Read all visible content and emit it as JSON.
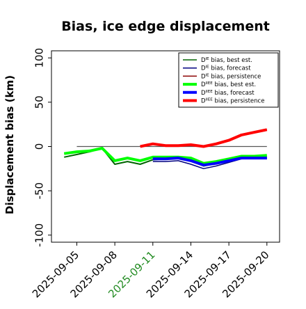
{
  "chart_data": {
    "type": "line",
    "title": "Bias, ice edge displacement",
    "xlabel": "",
    "ylabel": "Displacement bias (km)",
    "ylim": [
      -108,
      108
    ],
    "xlim": [
      "2025-09-03",
      "2025-09-21"
    ],
    "y_ticks": [
      -100,
      -50,
      0,
      50,
      100
    ],
    "y_tick_labels": [
      "-100",
      "-50",
      "0",
      "50",
      "100"
    ],
    "x_ticks": [
      "2025-09-05",
      "2025-09-08",
      "2025-09-11",
      "2025-09-14",
      "2025-09-17",
      "2025-09-20"
    ],
    "x_tick_labels": [
      "2025-09-05",
      "2025-09-08",
      "2025-09-11",
      "2025-09-14",
      "2025-09-17",
      "2025-09-20"
    ],
    "highlight_tick": "2025-09-11",
    "highlight_color": "#228b22",
    "grid": false,
    "legend_position": "top-right",
    "zero_line": {
      "y": 0,
      "from": "2025-09-05",
      "to": "2025-09-20",
      "color": "#555555"
    },
    "series": [
      {
        "name": "D^IE bias, best est.",
        "name_base": "D",
        "name_sup": "IE",
        "name_rest": " bias, best est.",
        "color": "#006400",
        "width": 2,
        "x": [
          "2025-09-04",
          "2025-09-05",
          "2025-09-06",
          "2025-09-07",
          "2025-09-08",
          "2025-09-09",
          "2025-09-10",
          "2025-09-11",
          "2025-09-12",
          "2025-09-13",
          "2025-09-14",
          "2025-09-15",
          "2025-09-16",
          "2025-09-17",
          "2025-09-18",
          "2025-09-19",
          "2025-09-20"
        ],
        "values": [
          -12,
          -9,
          -6,
          -2,
          -20,
          -17,
          -20,
          -15,
          -14,
          -13,
          -16,
          -22,
          -19,
          -16,
          -13,
          -13,
          -12
        ]
      },
      {
        "name": "D^IE bias, forecast",
        "name_base": "D",
        "name_sup": "IE",
        "name_rest": " bias, forecast",
        "color": "#000080",
        "width": 1.5,
        "x": [
          "2025-09-11",
          "2025-09-12",
          "2025-09-13",
          "2025-09-14",
          "2025-09-15",
          "2025-09-16",
          "2025-09-17",
          "2025-09-18",
          "2025-09-19",
          "2025-09-20"
        ],
        "values": [
          -17,
          -17,
          -16,
          -20,
          -25,
          -22,
          -18,
          -14,
          -14,
          -14
        ]
      },
      {
        "name": "D^IE bias, persistence",
        "name_base": "D",
        "name_sup": "IE",
        "name_rest": " bias, persistence",
        "color": "#8b0000",
        "width": 1.5,
        "x": [
          "2025-09-10",
          "2025-09-11",
          "2025-09-12",
          "2025-09-13",
          "2025-09-14",
          "2025-09-15",
          "2025-09-16",
          "2025-09-17",
          "2025-09-18",
          "2025-09-19",
          "2025-09-20"
        ],
        "values": [
          0,
          3,
          1,
          1,
          2,
          0,
          3,
          7,
          13,
          16,
          19
        ]
      },
      {
        "name": "D^IIEE bias, best est.",
        "name_base": "D",
        "name_sup": "IIEE",
        "name_rest": " bias, best est.",
        "color": "#00ff00",
        "width": 4,
        "x": [
          "2025-09-04",
          "2025-09-05",
          "2025-09-06",
          "2025-09-07",
          "2025-09-08",
          "2025-09-09",
          "2025-09-10",
          "2025-09-11",
          "2025-09-12",
          "2025-09-13",
          "2025-09-14",
          "2025-09-15",
          "2025-09-16",
          "2025-09-17",
          "2025-09-18",
          "2025-09-19",
          "2025-09-20"
        ],
        "values": [
          -8,
          -6,
          -5,
          -2,
          -16,
          -13,
          -16,
          -12,
          -12,
          -12,
          -13,
          -19,
          -17,
          -14,
          -11,
          -11,
          -10
        ]
      },
      {
        "name": "D^IIEE bias, forecast",
        "name_base": "D",
        "name_sup": "IIEE",
        "name_rest": " bias, forecast",
        "color": "#0000ff",
        "width": 4,
        "x": [
          "2025-09-11",
          "2025-09-12",
          "2025-09-13",
          "2025-09-14",
          "2025-09-15",
          "2025-09-16",
          "2025-09-17",
          "2025-09-18",
          "2025-09-19",
          "2025-09-20"
        ],
        "values": [
          -14,
          -14,
          -13,
          -16,
          -21,
          -19,
          -16,
          -13,
          -13,
          -13
        ]
      },
      {
        "name": "D^IIEE bias, persistence",
        "name_base": "D",
        "name_sup": "IIEE",
        "name_rest": " bias, persistence",
        "color": "#ff0000",
        "width": 4,
        "x": [
          "2025-09-10",
          "2025-09-11",
          "2025-09-12",
          "2025-09-13",
          "2025-09-14",
          "2025-09-15",
          "2025-09-16",
          "2025-09-17",
          "2025-09-18",
          "2025-09-19",
          "2025-09-20"
        ],
        "values": [
          0,
          3,
          1,
          1,
          2,
          0,
          3,
          7,
          13,
          16,
          19
        ]
      }
    ]
  }
}
